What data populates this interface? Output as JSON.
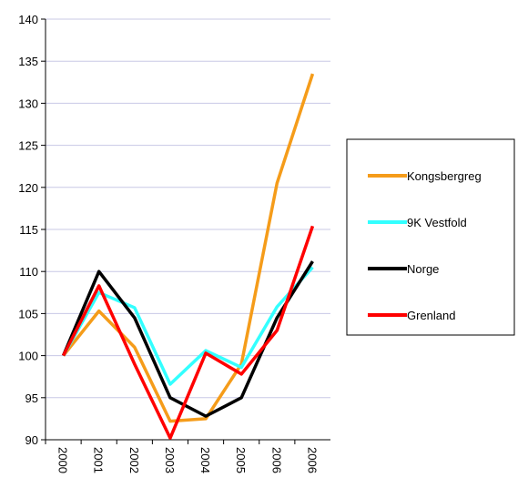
{
  "chart_data": {
    "type": "line",
    "categories": [
      "2000",
      "2001",
      "2002",
      "2003",
      "2004",
      "2005",
      "2006",
      "2006"
    ],
    "series": [
      {
        "name": "Kongsbergreg",
        "color": "#f59c1a",
        "values": [
          100,
          105.3,
          101,
          92.2,
          92.5,
          99,
          120.5,
          133.5
        ]
      },
      {
        "name": "9K Vestfold",
        "color": "#33ffff",
        "values": [
          100,
          107.5,
          105.7,
          96.6,
          100.6,
          98.6,
          105.8,
          110.5
        ]
      },
      {
        "name": "Norge",
        "color": "#000000",
        "values": [
          100,
          110,
          104.5,
          95,
          92.8,
          95,
          104.5,
          111.2
        ]
      },
      {
        "name": "Grenland",
        "color": "#ff0000",
        "values": [
          100,
          108.3,
          99,
          90.2,
          100.3,
          97.8,
          103,
          115.4
        ]
      }
    ],
    "ylim": [
      90,
      140
    ],
    "yticks": [
      90,
      95,
      100,
      105,
      110,
      115,
      120,
      125,
      130,
      135,
      140
    ],
    "grid": true,
    "legend": "right"
  }
}
